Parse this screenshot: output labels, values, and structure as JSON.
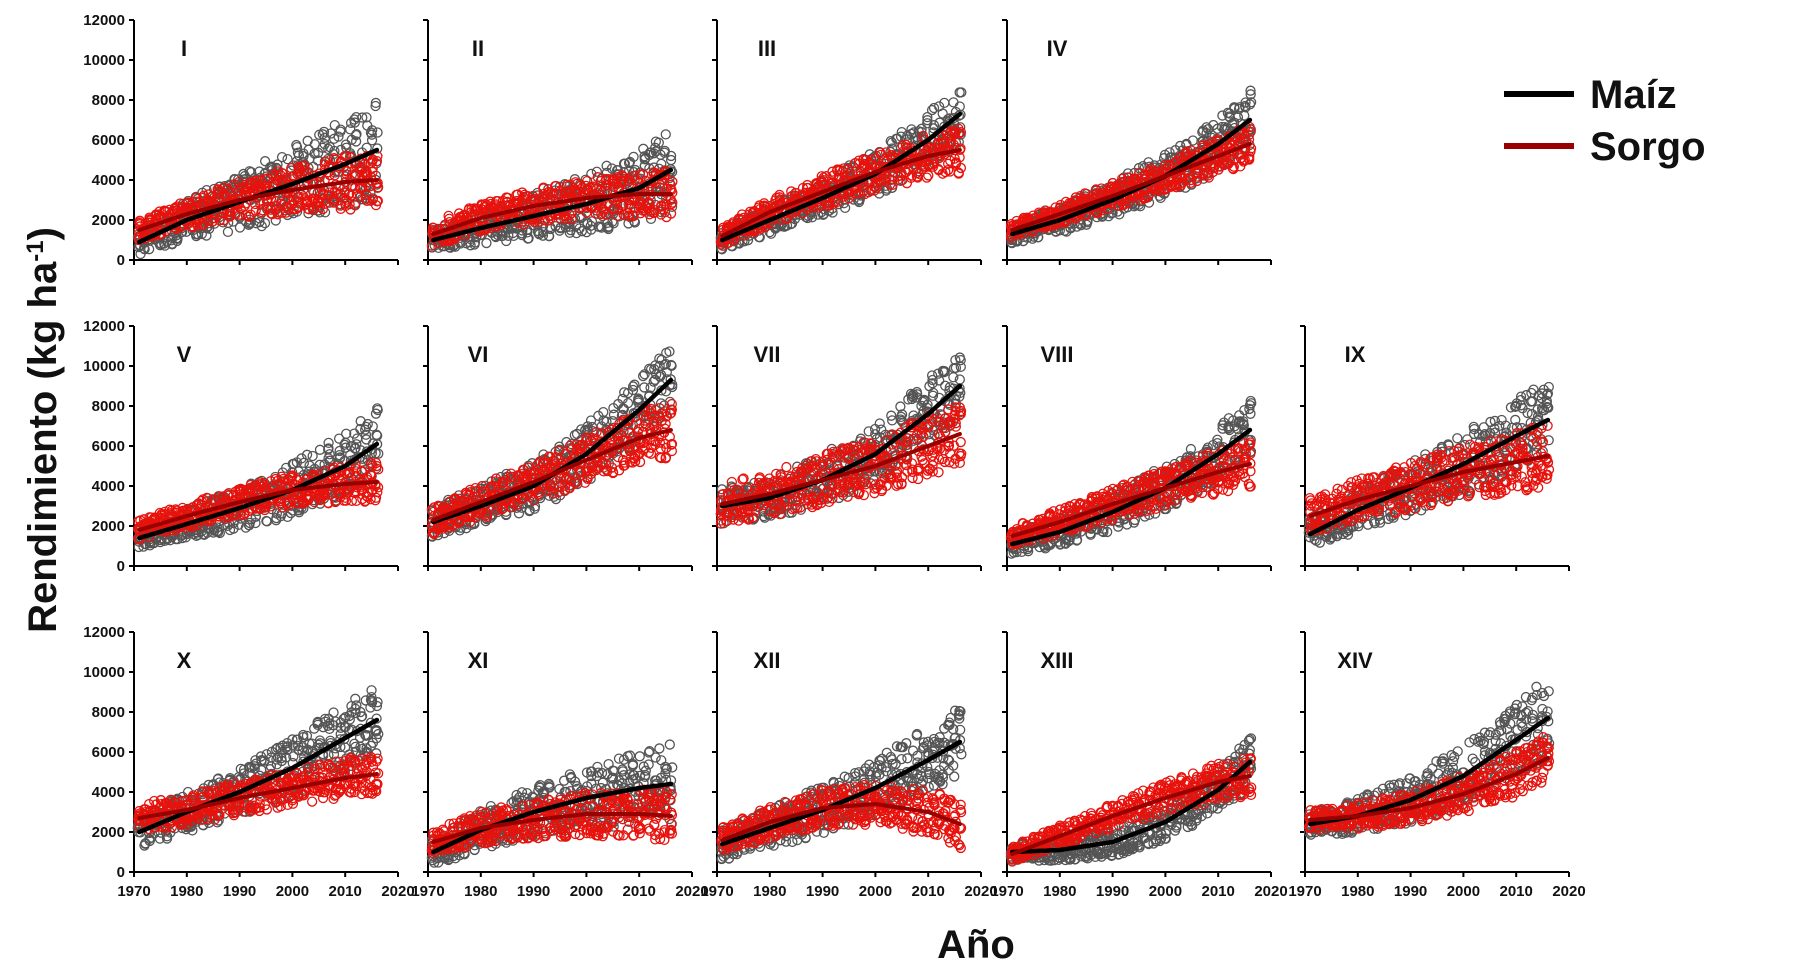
{
  "chart_data": {
    "type": "scatter",
    "xlabel": "Año",
    "ylabel": "Rendimiento (kg ha-1)",
    "xlim": [
      1970,
      2020
    ],
    "ylim": [
      0,
      12000
    ],
    "x_ticks": [
      "1970",
      "1980",
      "1990",
      "2000",
      "2010",
      "2020"
    ],
    "y_ticks": [
      "0",
      "2000",
      "4000",
      "6000",
      "8000",
      "10000",
      "12000"
    ],
    "legend": {
      "placement": "top-right",
      "entries": [
        {
          "name": "Maíz",
          "color": "#000000"
        },
        {
          "name": "Sorgo",
          "color": "#990000"
        }
      ]
    },
    "colors": {
      "maiz_line": "#000000",
      "maiz_points": "#555555",
      "sorgo_line": "#990000",
      "sorgo_points": "#e8120c"
    },
    "panels": [
      {
        "label": "I",
        "maiz_trend": [
          [
            1971,
            900
          ],
          [
            1980,
            2000
          ],
          [
            1990,
            2900
          ],
          [
            2000,
            3800
          ],
          [
            2010,
            4800
          ],
          [
            2016,
            5500
          ]
        ],
        "sorgo_trend": [
          [
            1971,
            1500
          ],
          [
            1980,
            2300
          ],
          [
            1990,
            3000
          ],
          [
            2000,
            3500
          ],
          [
            2010,
            3900
          ],
          [
            2016,
            4000
          ]
        ],
        "maiz_spread": [
          600,
          2500
        ],
        "sorgo_spread": [
          500,
          1500
        ]
      },
      {
        "label": "II",
        "maiz_trend": [
          [
            1971,
            1000
          ],
          [
            1980,
            1600
          ],
          [
            1990,
            2200
          ],
          [
            2000,
            2800
          ],
          [
            2010,
            3600
          ],
          [
            2016,
            4500
          ]
        ],
        "sorgo_trend": [
          [
            1971,
            1300
          ],
          [
            1980,
            2100
          ],
          [
            1990,
            2700
          ],
          [
            2000,
            3100
          ],
          [
            2010,
            3300
          ],
          [
            2016,
            3300
          ]
        ],
        "maiz_spread": [
          500,
          2000
        ],
        "sorgo_spread": [
          600,
          1200
        ]
      },
      {
        "label": "III",
        "maiz_trend": [
          [
            1971,
            1000
          ],
          [
            1980,
            2000
          ],
          [
            1990,
            3100
          ],
          [
            2000,
            4300
          ],
          [
            2010,
            6000
          ],
          [
            2016,
            7300
          ]
        ],
        "sorgo_trend": [
          [
            1971,
            1200
          ],
          [
            1980,
            2400
          ],
          [
            1990,
            3400
          ],
          [
            2000,
            4400
          ],
          [
            2010,
            5200
          ],
          [
            2016,
            5500
          ]
        ],
        "maiz_spread": [
          500,
          1500
        ],
        "sorgo_spread": [
          500,
          1200
        ]
      },
      {
        "label": "IV",
        "maiz_trend": [
          [
            1971,
            1300
          ],
          [
            1980,
            2000
          ],
          [
            1990,
            3000
          ],
          [
            2000,
            4200
          ],
          [
            2010,
            5800
          ],
          [
            2016,
            7000
          ]
        ],
        "sorgo_trend": [
          [
            1971,
            1500
          ],
          [
            1980,
            2300
          ],
          [
            1990,
            3200
          ],
          [
            2000,
            4200
          ],
          [
            2010,
            5200
          ],
          [
            2016,
            5800
          ]
        ],
        "maiz_spread": [
          500,
          1500
        ],
        "sorgo_spread": [
          400,
          1000
        ]
      },
      {
        "label": "V",
        "maiz_trend": [
          [
            1971,
            1400
          ],
          [
            1980,
            2100
          ],
          [
            1990,
            2900
          ],
          [
            2000,
            3800
          ],
          [
            2010,
            5000
          ],
          [
            2016,
            6100
          ]
        ],
        "sorgo_trend": [
          [
            1971,
            1800
          ],
          [
            1980,
            2500
          ],
          [
            1990,
            3200
          ],
          [
            2000,
            3800
          ],
          [
            2010,
            4100
          ],
          [
            2016,
            4200
          ]
        ],
        "maiz_spread": [
          500,
          1800
        ],
        "sorgo_spread": [
          500,
          1000
        ]
      },
      {
        "label": "VI",
        "maiz_trend": [
          [
            1971,
            2200
          ],
          [
            1980,
            3000
          ],
          [
            1990,
            4000
          ],
          [
            2000,
            5600
          ],
          [
            2010,
            7800
          ],
          [
            2016,
            9300
          ]
        ],
        "sorgo_trend": [
          [
            1971,
            2300
          ],
          [
            1980,
            3200
          ],
          [
            1990,
            4200
          ],
          [
            2000,
            5300
          ],
          [
            2010,
            6400
          ],
          [
            2016,
            6800
          ]
        ],
        "maiz_spread": [
          800,
          1800
        ],
        "sorgo_spread": [
          700,
          1400
        ]
      },
      {
        "label": "VII",
        "maiz_trend": [
          [
            1971,
            3000
          ],
          [
            1980,
            3400
          ],
          [
            1990,
            4300
          ],
          [
            2000,
            5600
          ],
          [
            2010,
            7600
          ],
          [
            2016,
            9000
          ]
        ],
        "sorgo_trend": [
          [
            1971,
            3100
          ],
          [
            1980,
            3600
          ],
          [
            1990,
            4300
          ],
          [
            2000,
            5000
          ],
          [
            2010,
            6000
          ],
          [
            2016,
            6600
          ]
        ],
        "maiz_spread": [
          900,
          1800
        ],
        "sorgo_spread": [
          1000,
          1600
        ]
      },
      {
        "label": "VIII",
        "maiz_trend": [
          [
            1971,
            1100
          ],
          [
            1980,
            1700
          ],
          [
            1990,
            2700
          ],
          [
            2000,
            3900
          ],
          [
            2010,
            5600
          ],
          [
            2016,
            6800
          ]
        ],
        "sorgo_trend": [
          [
            1971,
            1500
          ],
          [
            1980,
            2200
          ],
          [
            1990,
            3100
          ],
          [
            2000,
            3900
          ],
          [
            2010,
            4700
          ],
          [
            2016,
            5100
          ]
        ],
        "maiz_spread": [
          500,
          1500
        ],
        "sorgo_spread": [
          500,
          1200
        ]
      },
      {
        "label": "IX",
        "maiz_trend": [
          [
            1971,
            1600
          ],
          [
            1980,
            2800
          ],
          [
            1990,
            3900
          ],
          [
            2000,
            5100
          ],
          [
            2010,
            6500
          ],
          [
            2016,
            7300
          ]
        ],
        "sorgo_trend": [
          [
            1971,
            2500
          ],
          [
            1980,
            3300
          ],
          [
            1990,
            4000
          ],
          [
            2000,
            4700
          ],
          [
            2010,
            5200
          ],
          [
            2016,
            5500
          ]
        ],
        "maiz_spread": [
          800,
          2000
        ],
        "sorgo_spread": [
          900,
          1600
        ]
      },
      {
        "label": "X",
        "maiz_trend": [
          [
            1971,
            2000
          ],
          [
            1980,
            3000
          ],
          [
            1990,
            4000
          ],
          [
            2000,
            5200
          ],
          [
            2010,
            6700
          ],
          [
            2016,
            7600
          ]
        ],
        "sorgo_trend": [
          [
            1971,
            2700
          ],
          [
            1980,
            3100
          ],
          [
            1990,
            3700
          ],
          [
            2000,
            4200
          ],
          [
            2010,
            4700
          ],
          [
            2016,
            4900
          ]
        ],
        "maiz_spread": [
          800,
          1800
        ],
        "sorgo_spread": [
          700,
          1000
        ]
      },
      {
        "label": "XI",
        "maiz_trend": [
          [
            1971,
            1000
          ],
          [
            1980,
            2100
          ],
          [
            1990,
            3000
          ],
          [
            2000,
            3700
          ],
          [
            2010,
            4200
          ],
          [
            2016,
            4400
          ]
        ],
        "sorgo_trend": [
          [
            1971,
            1500
          ],
          [
            1980,
            2200
          ],
          [
            1990,
            2600
          ],
          [
            2000,
            2900
          ],
          [
            2010,
            2900
          ],
          [
            2016,
            2800
          ]
        ],
        "maiz_spread": [
          700,
          2000
        ],
        "sorgo_spread": [
          700,
          1300
        ]
      },
      {
        "label": "XII",
        "maiz_trend": [
          [
            1971,
            1400
          ],
          [
            1980,
            2200
          ],
          [
            1990,
            3100
          ],
          [
            2000,
            4200
          ],
          [
            2010,
            5600
          ],
          [
            2016,
            6500
          ]
        ],
        "sorgo_trend": [
          [
            1971,
            1600
          ],
          [
            1980,
            2500
          ],
          [
            1990,
            3200
          ],
          [
            2000,
            3400
          ],
          [
            2010,
            3000
          ],
          [
            2016,
            2400
          ]
        ],
        "maiz_spread": [
          800,
          1800
        ],
        "sorgo_spread": [
          700,
          1200
        ]
      },
      {
        "label": "XIII",
        "maiz_trend": [
          [
            1971,
            1000
          ],
          [
            1980,
            1100
          ],
          [
            1990,
            1500
          ],
          [
            2000,
            2500
          ],
          [
            2010,
            4100
          ],
          [
            2016,
            5500
          ]
        ],
        "sorgo_trend": [
          [
            1971,
            900
          ],
          [
            1980,
            1800
          ],
          [
            1990,
            2800
          ],
          [
            2000,
            3700
          ],
          [
            2010,
            4500
          ],
          [
            2016,
            4800
          ]
        ],
        "maiz_spread": [
          400,
          1200
        ],
        "sorgo_spread": [
          400,
          1000
        ]
      },
      {
        "label": "XIV",
        "maiz_trend": [
          [
            1971,
            2400
          ],
          [
            1980,
            2800
          ],
          [
            1990,
            3600
          ],
          [
            2000,
            4800
          ],
          [
            2010,
            6600
          ],
          [
            2016,
            7700
          ]
        ],
        "sorgo_trend": [
          [
            1971,
            2600
          ],
          [
            1980,
            2800
          ],
          [
            1990,
            3200
          ],
          [
            2000,
            3900
          ],
          [
            2010,
            4900
          ],
          [
            2016,
            5700
          ]
        ],
        "maiz_spread": [
          600,
          2000
        ],
        "sorgo_spread": [
          500,
          1200
        ]
      }
    ]
  }
}
